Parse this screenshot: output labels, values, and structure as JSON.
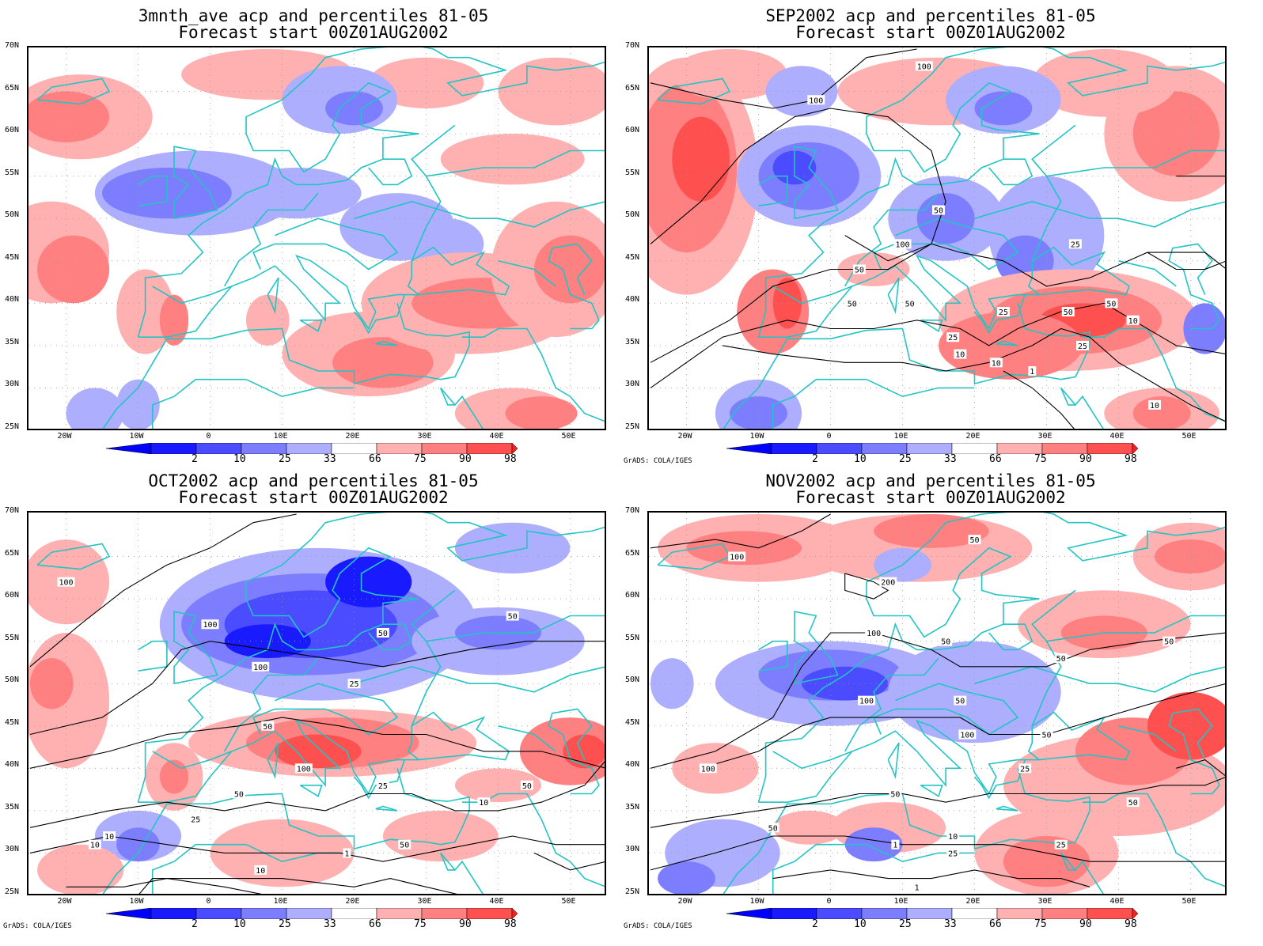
{
  "colors": {
    "c2": "#1a1aff",
    "c10": "#4b4bff",
    "c25": "#7d7dff",
    "c33": "#aeaeff",
    "c66": "#ffb0b0",
    "c75": "#ff8080",
    "c90": "#ff5050",
    "c98": "#ff1e1e",
    "coast": "#22c4c4",
    "contour": "#000000"
  },
  "lat_labels": [
    "70N",
    "65N",
    "60N",
    "55N",
    "50N",
    "45N",
    "40N",
    "35N",
    "30N",
    "25N"
  ],
  "lon_labels": [
    "20W",
    "10W",
    "0",
    "10E",
    "20E",
    "30E",
    "40E",
    "50E"
  ],
  "colorbar_labels": [
    "2",
    "10",
    "25",
    "33",
    "66",
    "75",
    "90",
    "98"
  ],
  "credit": "GrADS: COLA/IGES",
  "panels": [
    {
      "title1": "3mnth_ave acp and percentiles 81-05",
      "title2": "Forecast start 00Z01AUG2002",
      "show_credit": false
    },
    {
      "title1": "SEP2002 acp and percentiles 81-05",
      "title2": "Forecast start 00Z01AUG2002",
      "show_credit": true
    },
    {
      "title1": "OCT2002 acp and percentiles 81-05",
      "title2": "Forecast start 00Z01AUG2002",
      "show_credit": true
    },
    {
      "title1": "NOV2002 acp and percentiles 81-05",
      "title2": "Forecast start 00Z01AUG2002",
      "show_credit": true
    }
  ],
  "contour_labels": {
    "p1": [],
    "p2": [
      "100",
      "100",
      "50",
      "50",
      "100",
      "25",
      "50",
      "50",
      "50",
      "25",
      "50",
      "10",
      "25",
      "10",
      "25",
      "10",
      "1",
      "10"
    ],
    "p3": [
      "100",
      "100",
      "50",
      "50",
      "100",
      "25",
      "50",
      "100",
      "50",
      "25",
      "10",
      "25",
      "50",
      "10",
      "1",
      "10",
      "50",
      "10"
    ],
    "p4": [
      "100",
      "200",
      "50",
      "100",
      "50",
      "50",
      "100",
      "50",
      "100",
      "50",
      "50",
      "100",
      "50",
      "25",
      "50",
      "1",
      "10",
      "25",
      "50",
      "25",
      "1"
    ]
  }
}
